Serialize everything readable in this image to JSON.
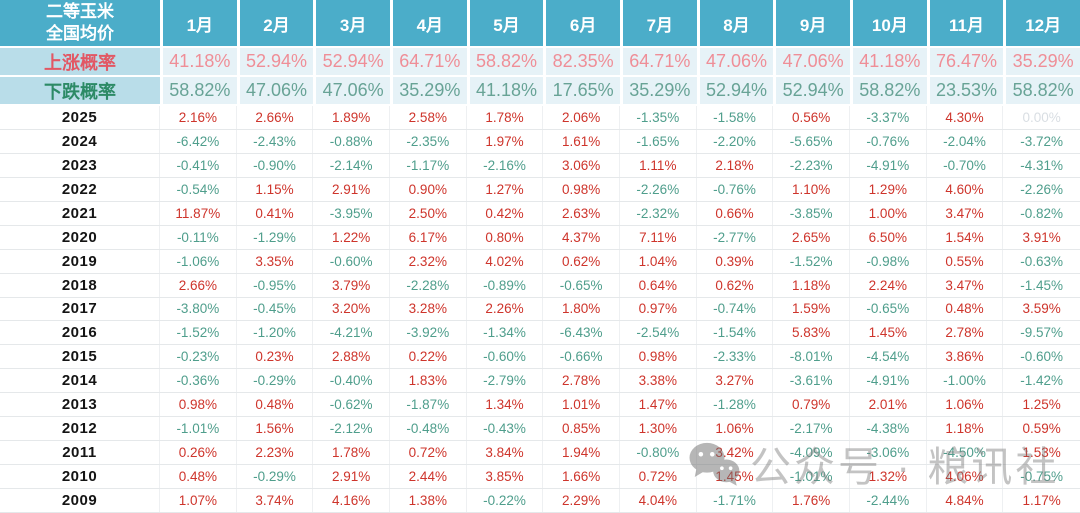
{
  "chart_data": {
    "type": "table",
    "corner_header": [
      "二等玉米",
      "全国均价"
    ],
    "columns": [
      "1月",
      "2月",
      "3月",
      "4月",
      "5月",
      "6月",
      "7月",
      "8月",
      "9月",
      "10月",
      "11月",
      "12月"
    ],
    "probability_rows": [
      {
        "label": "上涨概率",
        "values": [
          "41.18%",
          "52.94%",
          "52.94%",
          "64.71%",
          "58.82%",
          "82.35%",
          "64.71%",
          "47.06%",
          "47.06%",
          "41.18%",
          "76.47%",
          "35.29%"
        ]
      },
      {
        "label": "下跌概率",
        "values": [
          "58.82%",
          "47.06%",
          "47.06%",
          "35.29%",
          "41.18%",
          "17.65%",
          "35.29%",
          "52.94%",
          "52.94%",
          "58.82%",
          "23.53%",
          "58.82%"
        ]
      }
    ],
    "year_rows": [
      {
        "label": "2025",
        "values": [
          "2.16%",
          "2.66%",
          "1.89%",
          "2.58%",
          "1.78%",
          "2.06%",
          "-1.35%",
          "-1.58%",
          "0.56%",
          "-3.37%",
          "4.30%",
          "0.00%"
        ]
      },
      {
        "label": "2024",
        "values": [
          "-6.42%",
          "-2.43%",
          "-0.88%",
          "-2.35%",
          "1.97%",
          "1.61%",
          "-1.65%",
          "-2.20%",
          "-5.65%",
          "-0.76%",
          "-2.04%",
          "-3.72%"
        ]
      },
      {
        "label": "2023",
        "values": [
          "-0.41%",
          "-0.90%",
          "-2.14%",
          "-1.17%",
          "-2.16%",
          "3.06%",
          "1.11%",
          "2.18%",
          "-2.23%",
          "-4.91%",
          "-0.70%",
          "-4.31%"
        ]
      },
      {
        "label": "2022",
        "values": [
          "-0.54%",
          "1.15%",
          "2.91%",
          "0.90%",
          "1.27%",
          "0.98%",
          "-2.26%",
          "-0.76%",
          "1.10%",
          "1.29%",
          "4.60%",
          "-2.26%"
        ]
      },
      {
        "label": "2021",
        "values": [
          "11.87%",
          "0.41%",
          "-3.95%",
          "2.50%",
          "0.42%",
          "2.63%",
          "-2.32%",
          "0.66%",
          "-3.85%",
          "1.00%",
          "3.47%",
          "-0.82%"
        ]
      },
      {
        "label": "2020",
        "values": [
          "-0.11%",
          "-1.29%",
          "1.22%",
          "6.17%",
          "0.80%",
          "4.37%",
          "7.11%",
          "-2.77%",
          "2.65%",
          "6.50%",
          "1.54%",
          "3.91%"
        ]
      },
      {
        "label": "2019",
        "values": [
          "-1.06%",
          "3.35%",
          "-0.60%",
          "2.32%",
          "4.02%",
          "0.62%",
          "1.04%",
          "0.39%",
          "-1.52%",
          "-0.98%",
          "0.55%",
          "-0.63%"
        ]
      },
      {
        "label": "2018",
        "values": [
          "2.66%",
          "-0.95%",
          "3.79%",
          "-2.28%",
          "-0.89%",
          "-0.65%",
          "0.64%",
          "0.62%",
          "1.18%",
          "2.24%",
          "3.47%",
          "-1.45%"
        ]
      },
      {
        "label": "2017",
        "values": [
          "-3.80%",
          "-0.45%",
          "3.20%",
          "3.28%",
          "2.26%",
          "1.80%",
          "0.97%",
          "-0.74%",
          "1.59%",
          "-0.65%",
          "0.48%",
          "3.59%"
        ]
      },
      {
        "label": "2016",
        "values": [
          "-1.52%",
          "-1.20%",
          "-4.21%",
          "-3.92%",
          "-1.34%",
          "-6.43%",
          "-2.54%",
          "-1.54%",
          "5.83%",
          "1.45%",
          "2.78%",
          "-9.57%"
        ]
      },
      {
        "label": "2015",
        "values": [
          "-0.23%",
          "0.23%",
          "2.88%",
          "0.22%",
          "-0.60%",
          "-0.66%",
          "0.98%",
          "-2.33%",
          "-8.01%",
          "-4.54%",
          "3.86%",
          "-0.60%"
        ]
      },
      {
        "label": "2014",
        "values": [
          "-0.36%",
          "-0.29%",
          "-0.40%",
          "1.83%",
          "-2.79%",
          "2.78%",
          "3.38%",
          "3.27%",
          "-3.61%",
          "-4.91%",
          "-1.00%",
          "-1.42%"
        ]
      },
      {
        "label": "2013",
        "values": [
          "0.98%",
          "0.48%",
          "-0.62%",
          "-1.87%",
          "1.34%",
          "1.01%",
          "1.47%",
          "-1.28%",
          "0.79%",
          "2.01%",
          "1.06%",
          "1.25%"
        ]
      },
      {
        "label": "2012",
        "values": [
          "-1.01%",
          "1.56%",
          "-2.12%",
          "-0.48%",
          "-0.43%",
          "0.85%",
          "1.30%",
          "1.06%",
          "-2.17%",
          "-4.38%",
          "1.18%",
          "0.59%"
        ]
      },
      {
        "label": "2011",
        "values": [
          "0.26%",
          "2.23%",
          "1.78%",
          "0.72%",
          "3.84%",
          "1.94%",
          "-0.80%",
          "3.42%",
          "-4.09%",
          "-3.06%",
          "-4.50%",
          "1.53%"
        ]
      },
      {
        "label": "2010",
        "values": [
          "0.48%",
          "-0.29%",
          "2.91%",
          "2.44%",
          "3.85%",
          "1.66%",
          "0.72%",
          "1.45%",
          "-1.01%",
          "1.32%",
          "4.06%",
          "-0.75%"
        ]
      },
      {
        "label": "2009",
        "values": [
          "1.07%",
          "3.74%",
          "4.16%",
          "1.38%",
          "-0.22%",
          "2.29%",
          "4.04%",
          "-1.71%",
          "1.76%",
          "-2.44%",
          "4.84%",
          "1.17%"
        ]
      }
    ]
  },
  "watermark": {
    "text": "公众号 · 粮讯社"
  },
  "colors": {
    "header_bg": "#4badc9",
    "prob_label_bg": "#b9dde9",
    "prob_cell_bg": "#e6f2f7",
    "rise_label": "#e25764",
    "rise_value": "#ef8e97",
    "fall_label": "#2c8a66",
    "fall_value": "#68a396",
    "positive_value": "#ce342b",
    "negative_value": "#4f9e8c",
    "zero_value": "#d9dee3"
  }
}
